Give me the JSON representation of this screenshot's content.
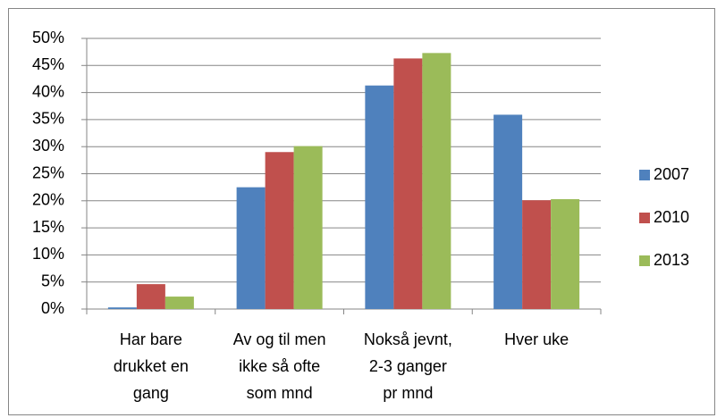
{
  "chart_data": {
    "type": "bar",
    "categories": [
      "Har bare\ndrukket en\ngang",
      "Av og til men\nikke så ofte\nsom mnd",
      "Nokså jevnt,\n2-3 ganger\npr mnd",
      "Hver uke"
    ],
    "series": [
      {
        "name": "2007",
        "color": "#4f81bd",
        "values": [
          0.3,
          22.5,
          41.3,
          35.9
        ]
      },
      {
        "name": "2010",
        "color": "#c0504d",
        "values": [
          4.6,
          29.0,
          46.3,
          20.1
        ]
      },
      {
        "name": "2013",
        "color": "#9bbb59",
        "values": [
          2.3,
          30.1,
          47.3,
          20.3
        ]
      }
    ],
    "ylim": [
      0,
      50
    ],
    "yticks": [
      {
        "value": 0,
        "label": "0%"
      },
      {
        "value": 5,
        "label": "5%"
      },
      {
        "value": 10,
        "label": "10%"
      },
      {
        "value": 15,
        "label": "15%"
      },
      {
        "value": 20,
        "label": "20%"
      },
      {
        "value": 25,
        "label": "25%"
      },
      {
        "value": 30,
        "label": "30%"
      },
      {
        "value": 35,
        "label": "35%"
      },
      {
        "value": 40,
        "label": "40%"
      },
      {
        "value": 45,
        "label": "45%"
      },
      {
        "value": 50,
        "label": "50%"
      }
    ],
    "grid": true,
    "legend": "right"
  }
}
